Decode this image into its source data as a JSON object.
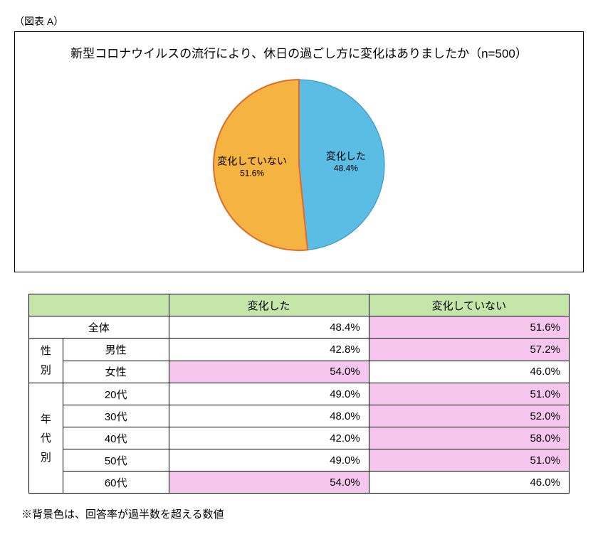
{
  "figure_label": "（図表 A）",
  "chart": {
    "type": "pie",
    "title": "新型コロナウイルスの流行により、休日の過ごし方に変化はありましたか（n=500）",
    "radius": 120,
    "slices": [
      {
        "label": "変化した",
        "pct_label": "48.4%",
        "value": 48.4,
        "fill": "#5bbce4",
        "stroke": "#2a90c0",
        "stroke_width": 1
      },
      {
        "label": "変化していない",
        "pct_label": "51.6%",
        "value": 51.6,
        "fill": "#f5b342",
        "stroke": "#e06a2b",
        "stroke_width": 2
      }
    ],
    "label_fontsize_main": 14,
    "label_fontsize_pct": 12,
    "background": "#ffffff"
  },
  "table": {
    "header_bg": "#c4e6a8",
    "highlight_bg": "#f7c6ef",
    "columns": [
      "変化した",
      "変化していない"
    ],
    "groups": [
      {
        "group_label": "",
        "group_vertical": "",
        "rows": [
          {
            "label": "全体",
            "values": [
              "48.4%",
              "51.6%"
            ],
            "highlight": [
              false,
              true
            ],
            "span_group": true
          }
        ]
      },
      {
        "group_label": "性別",
        "group_vertical": "性\n別",
        "rows": [
          {
            "label": "男性",
            "values": [
              "42.8%",
              "57.2%"
            ],
            "highlight": [
              false,
              true
            ]
          },
          {
            "label": "女性",
            "values": [
              "54.0%",
              "46.0%"
            ],
            "highlight": [
              true,
              false
            ]
          }
        ]
      },
      {
        "group_label": "年代別",
        "group_vertical": "年\n代\n別",
        "rows": [
          {
            "label": "20代",
            "values": [
              "49.0%",
              "51.0%"
            ],
            "highlight": [
              false,
              true
            ]
          },
          {
            "label": "30代",
            "values": [
              "48.0%",
              "52.0%"
            ],
            "highlight": [
              false,
              true
            ]
          },
          {
            "label": "40代",
            "values": [
              "42.0%",
              "58.0%"
            ],
            "highlight": [
              false,
              true
            ]
          },
          {
            "label": "50代",
            "values": [
              "49.0%",
              "51.0%"
            ],
            "highlight": [
              false,
              true
            ]
          },
          {
            "label": "60代",
            "values": [
              "54.0%",
              "46.0%"
            ],
            "highlight": [
              true,
              false
            ]
          }
        ]
      }
    ]
  },
  "footnote": "※背景色は、回答率が過半数を超える数値"
}
